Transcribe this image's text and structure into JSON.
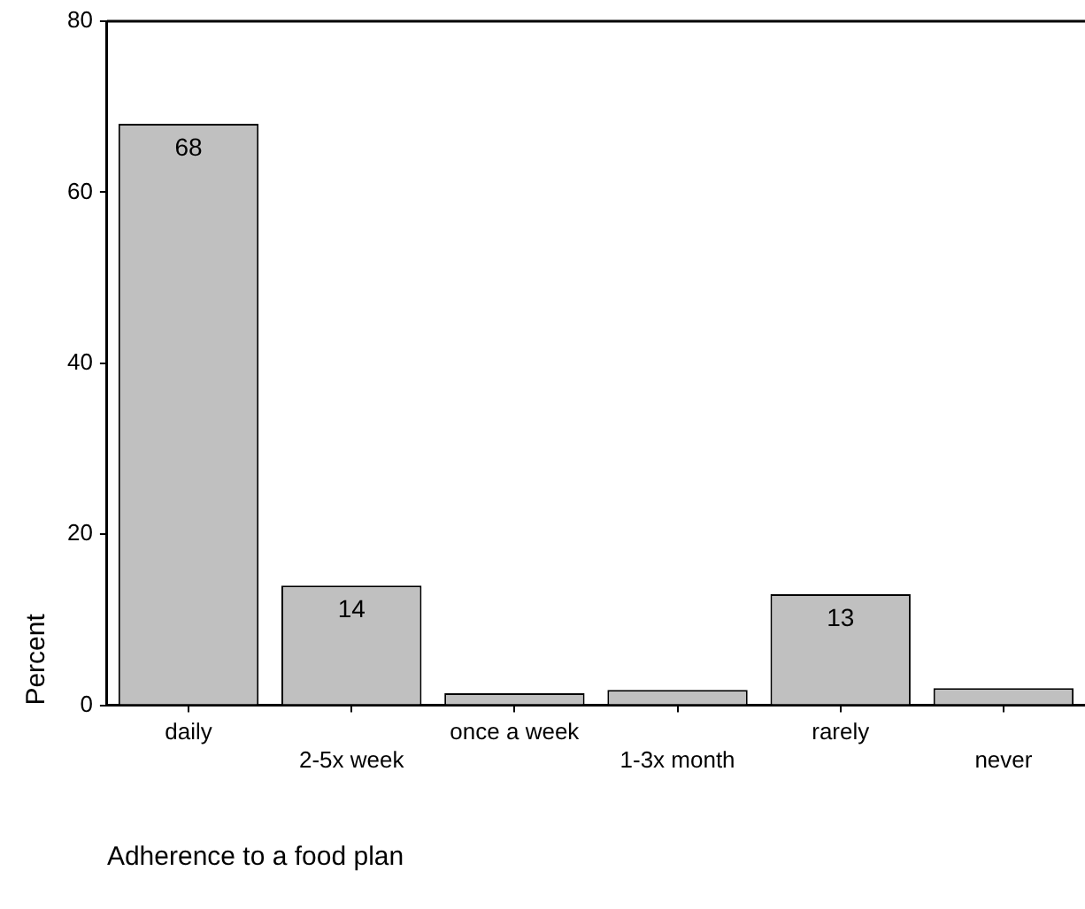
{
  "chart_data": {
    "type": "bar",
    "xlabel": "Adherence to a food plan",
    "ylabel": "Percent",
    "categories": [
      "daily",
      "2-5x week",
      "once a week",
      "1-3x month",
      "rarely",
      "never"
    ],
    "values": [
      68,
      14,
      1.4,
      1.8,
      13,
      2.0
    ],
    "value_labels": [
      "68",
      "14",
      null,
      null,
      "13",
      null
    ],
    "color": "#c0c0c0",
    "ylim": [
      0,
      80
    ],
    "yticks": [
      0,
      20,
      40,
      60,
      80
    ],
    "grid": false,
    "legend": false
  }
}
